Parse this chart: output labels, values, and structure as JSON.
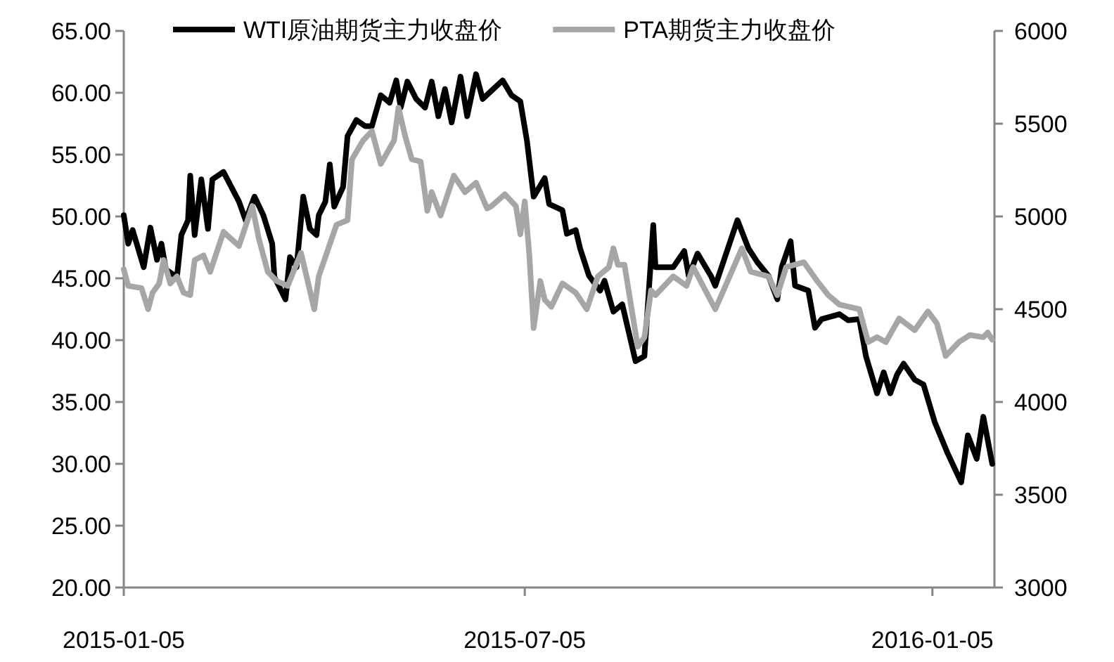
{
  "chart_data": {
    "type": "line",
    "legend": "top",
    "grid": false,
    "xlim": [
      "2015-01-05",
      "2016-02-02"
    ],
    "xticks": [
      {
        "value": "2015-01-05",
        "label": "2015-01-05"
      },
      {
        "value": "2015-07-05",
        "label": "2015-07-05"
      },
      {
        "value": "2016-01-05",
        "label": "2016-01-05"
      }
    ],
    "ylim": [
      20,
      65
    ],
    "yticks": [
      {
        "value": 20,
        "label": "20.00"
      },
      {
        "value": 25,
        "label": "25.00"
      },
      {
        "value": 30,
        "label": "30.00"
      },
      {
        "value": 35,
        "label": "35.00"
      },
      {
        "value": 40,
        "label": "40.00"
      },
      {
        "value": 45,
        "label": "45.00"
      },
      {
        "value": 50,
        "label": "50.00"
      },
      {
        "value": 55,
        "label": "55.00"
      },
      {
        "value": 60,
        "label": "60.00"
      },
      {
        "value": 65,
        "label": "65.00"
      }
    ],
    "y2lim": [
      3000,
      6000
    ],
    "y2ticks": [
      3000,
      3500,
      4000,
      4500,
      5000,
      5500,
      6000
    ],
    "series": [
      {
        "name": "WTI原油期货主力收盘价",
        "color": "#000000",
        "axis": "y",
        "x": [
          "2015-01-05",
          "2015-01-07",
          "2015-01-09",
          "2015-01-14",
          "2015-01-17",
          "2015-01-20",
          "2015-01-22",
          "2015-01-24",
          "2015-01-29",
          "2015-01-31",
          "2015-02-03",
          "2015-02-04",
          "2015-02-06",
          "2015-02-09",
          "2015-02-12",
          "2015-02-14",
          "2015-02-19",
          "2015-02-26",
          "2015-03-01",
          "2015-03-05",
          "2015-03-09",
          "2015-03-13",
          "2015-03-14",
          "2015-03-19",
          "2015-03-21",
          "2015-03-24",
          "2015-03-27",
          "2015-03-30",
          "2015-04-02",
          "2015-04-03",
          "2015-04-06",
          "2015-04-08",
          "2015-04-10",
          "2015-04-14",
          "2015-04-16",
          "2015-04-20",
          "2015-04-24",
          "2015-04-27",
          "2015-05-01",
          "2015-05-05",
          "2015-05-08",
          "2015-05-10",
          "2015-05-13",
          "2015-05-17",
          "2015-05-21",
          "2015-05-24",
          "2015-05-27",
          "2015-05-30",
          "2015-06-02",
          "2015-06-06",
          "2015-06-09",
          "2015-06-13",
          "2015-06-16",
          "2015-06-25",
          "2015-06-29",
          "2015-07-03",
          "2015-07-06",
          "2015-07-09",
          "2015-07-14",
          "2015-07-16",
          "2015-07-22",
          "2015-07-24",
          "2015-07-28",
          "2015-07-30",
          "2015-08-03",
          "2015-08-08",
          "2015-08-10",
          "2015-08-14",
          "2015-08-18",
          "2015-08-24",
          "2015-08-28",
          "2015-09-01",
          "2015-09-02",
          "2015-09-10",
          "2015-09-15",
          "2015-09-17",
          "2015-09-21",
          "2015-09-27",
          "2015-09-29",
          "2015-10-09",
          "2015-10-14",
          "2015-10-18",
          "2015-10-23",
          "2015-10-27",
          "2015-10-29",
          "2015-11-02",
          "2015-11-04",
          "2015-11-10",
          "2015-11-13",
          "2015-11-16",
          "2015-11-24",
          "2015-11-28",
          "2015-12-03",
          "2015-12-06",
          "2015-12-11",
          "2015-12-14",
          "2015-12-17",
          "2015-12-20",
          "2015-12-23",
          "2015-12-28",
          "2016-01-01",
          "2016-01-06",
          "2016-01-12",
          "2016-01-18",
          "2016-01-21",
          "2016-01-25",
          "2016-01-28",
          "2016-02-01"
        ],
        "values": [
          50.1,
          47.8,
          48.9,
          45.9,
          49.1,
          46.5,
          47.8,
          45.7,
          45.1,
          48.5,
          49.7,
          53.3,
          48.5,
          53.0,
          49.0,
          53.0,
          53.6,
          51.2,
          49.7,
          51.6,
          50.1,
          47.8,
          45.1,
          43.3,
          46.7,
          45.9,
          51.6,
          49.0,
          48.5,
          50.1,
          51.2,
          54.2,
          50.8,
          52.4,
          56.5,
          57.8,
          57.3,
          57.3,
          59.8,
          59.2,
          61.0,
          58.8,
          60.9,
          59.5,
          58.8,
          60.9,
          58.1,
          60.3,
          57.6,
          61.3,
          58.1,
          61.5,
          59.5,
          61.0,
          59.8,
          59.3,
          56.1,
          51.6,
          53.1,
          51.0,
          50.5,
          48.6,
          48.9,
          47.4,
          45.2,
          44.0,
          44.8,
          42.3,
          42.9,
          38.3,
          38.7,
          49.3,
          45.9,
          45.9,
          47.2,
          45.2,
          47.0,
          45.2,
          44.4,
          49.7,
          47.4,
          46.3,
          45.2,
          43.3,
          45.9,
          48.0,
          44.4,
          44.0,
          41.0,
          41.7,
          42.1,
          41.6,
          41.7,
          38.7,
          35.7,
          37.4,
          35.7,
          37.2,
          38.1,
          36.8,
          36.4,
          33.4,
          30.8,
          28.5,
          32.3,
          30.4,
          33.8,
          30.0
        ]
      },
      {
        "name": "PTA期货主力收盘价",
        "color": "#a6a6a6",
        "axis": "y2",
        "x": [
          "2015-01-05",
          "2015-01-07",
          "2015-01-13",
          "2015-01-16",
          "2015-01-18",
          "2015-01-21",
          "2015-01-23",
          "2015-01-26",
          "2015-01-29",
          "2015-02-01",
          "2015-02-04",
          "2015-02-06",
          "2015-02-10",
          "2015-02-13",
          "2015-02-19",
          "2015-02-26",
          "2015-03-04",
          "2015-03-07",
          "2015-03-11",
          "2015-03-15",
          "2015-03-20",
          "2015-03-26",
          "2015-04-01",
          "2015-04-03",
          "2015-04-11",
          "2015-04-16",
          "2015-04-18",
          "2015-04-23",
          "2015-04-27",
          "2015-05-01",
          "2015-05-07",
          "2015-05-09",
          "2015-05-12",
          "2015-05-15",
          "2015-05-19",
          "2015-05-22",
          "2015-05-24",
          "2015-05-28",
          "2015-06-03",
          "2015-06-08",
          "2015-06-13",
          "2015-06-18",
          "2015-06-20",
          "2015-06-26",
          "2015-07-01",
          "2015-07-03",
          "2015-07-05",
          "2015-07-07",
          "2015-07-09",
          "2015-07-12",
          "2015-07-14",
          "2015-07-17",
          "2015-07-22",
          "2015-07-28",
          "2015-08-02",
          "2015-08-07",
          "2015-08-12",
          "2015-08-14",
          "2015-08-16",
          "2015-08-19",
          "2015-08-25",
          "2015-08-28",
          "2015-08-31",
          "2015-09-02",
          "2015-09-10",
          "2015-09-16",
          "2015-09-19",
          "2015-09-29",
          "2015-10-11",
          "2015-10-15",
          "2015-10-23",
          "2015-10-27",
          "2015-10-31",
          "2015-11-08",
          "2015-11-14",
          "2015-11-19",
          "2015-11-24",
          "2015-12-03",
          "2015-12-07",
          "2015-12-11",
          "2015-12-15",
          "2015-12-21",
          "2015-12-28",
          "2016-01-03",
          "2016-01-07",
          "2016-01-11",
          "2016-01-17",
          "2016-01-22",
          "2016-01-28",
          "2016-01-30",
          "2016-02-01"
        ],
        "values": [
          4715,
          4626,
          4614,
          4500,
          4589,
          4639,
          4765,
          4639,
          4677,
          4589,
          4576,
          4765,
          4790,
          4702,
          4917,
          4841,
          5056,
          4879,
          4702,
          4652,
          4626,
          4803,
          4500,
          4677,
          4955,
          4980,
          5308,
          5409,
          5460,
          5283,
          5409,
          5586,
          5434,
          5308,
          5296,
          5030,
          5131,
          5005,
          5220,
          5131,
          5182,
          5043,
          5056,
          5119,
          5056,
          4904,
          5081,
          4803,
          4399,
          4652,
          4551,
          4513,
          4639,
          4589,
          4500,
          4677,
          4727,
          4828,
          4740,
          4740,
          4298,
          4349,
          4601,
          4576,
          4677,
          4626,
          4727,
          4500,
          4828,
          4702,
          4677,
          4576,
          4727,
          4753,
          4652,
          4576,
          4525,
          4500,
          4323,
          4349,
          4323,
          4450,
          4387,
          4488,
          4424,
          4248,
          4323,
          4361,
          4349,
          4374,
          4336
        ]
      }
    ]
  }
}
